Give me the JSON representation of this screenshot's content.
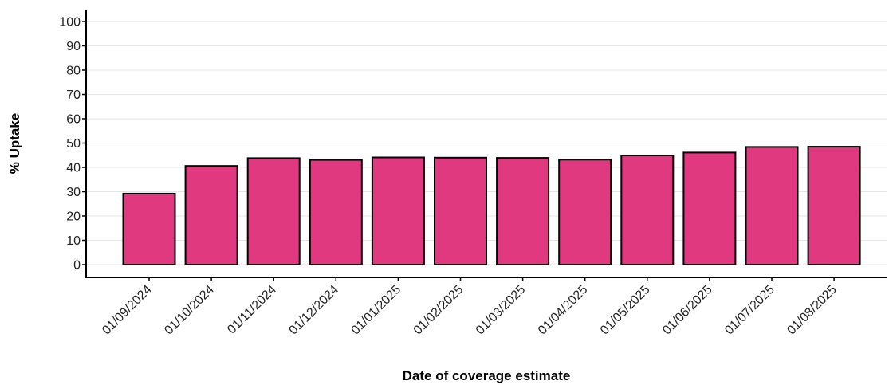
{
  "chart_data": {
    "type": "bar",
    "title": "",
    "xlabel": "Date of coverage estimate",
    "ylabel": "% Uptake",
    "categories": [
      "01/09/2024",
      "01/10/2024",
      "01/11/2024",
      "01/12/2024",
      "01/01/2025",
      "01/02/2025",
      "01/03/2025",
      "01/04/2025",
      "01/05/2025",
      "01/06/2025",
      "01/07/2025",
      "01/08/2025"
    ],
    "values": [
      29.2,
      40.6,
      43.8,
      43.1,
      44.1,
      44.0,
      43.9,
      43.2,
      44.9,
      46.1,
      48.4,
      48.5
    ],
    "ylim": [
      0,
      100
    ],
    "yticks": [
      0,
      10,
      20,
      30,
      40,
      50,
      60,
      70,
      80,
      90,
      100
    ],
    "grid": true,
    "legend": "none",
    "bar_color": "#e0397f",
    "bar_edge_color": "#000000"
  }
}
